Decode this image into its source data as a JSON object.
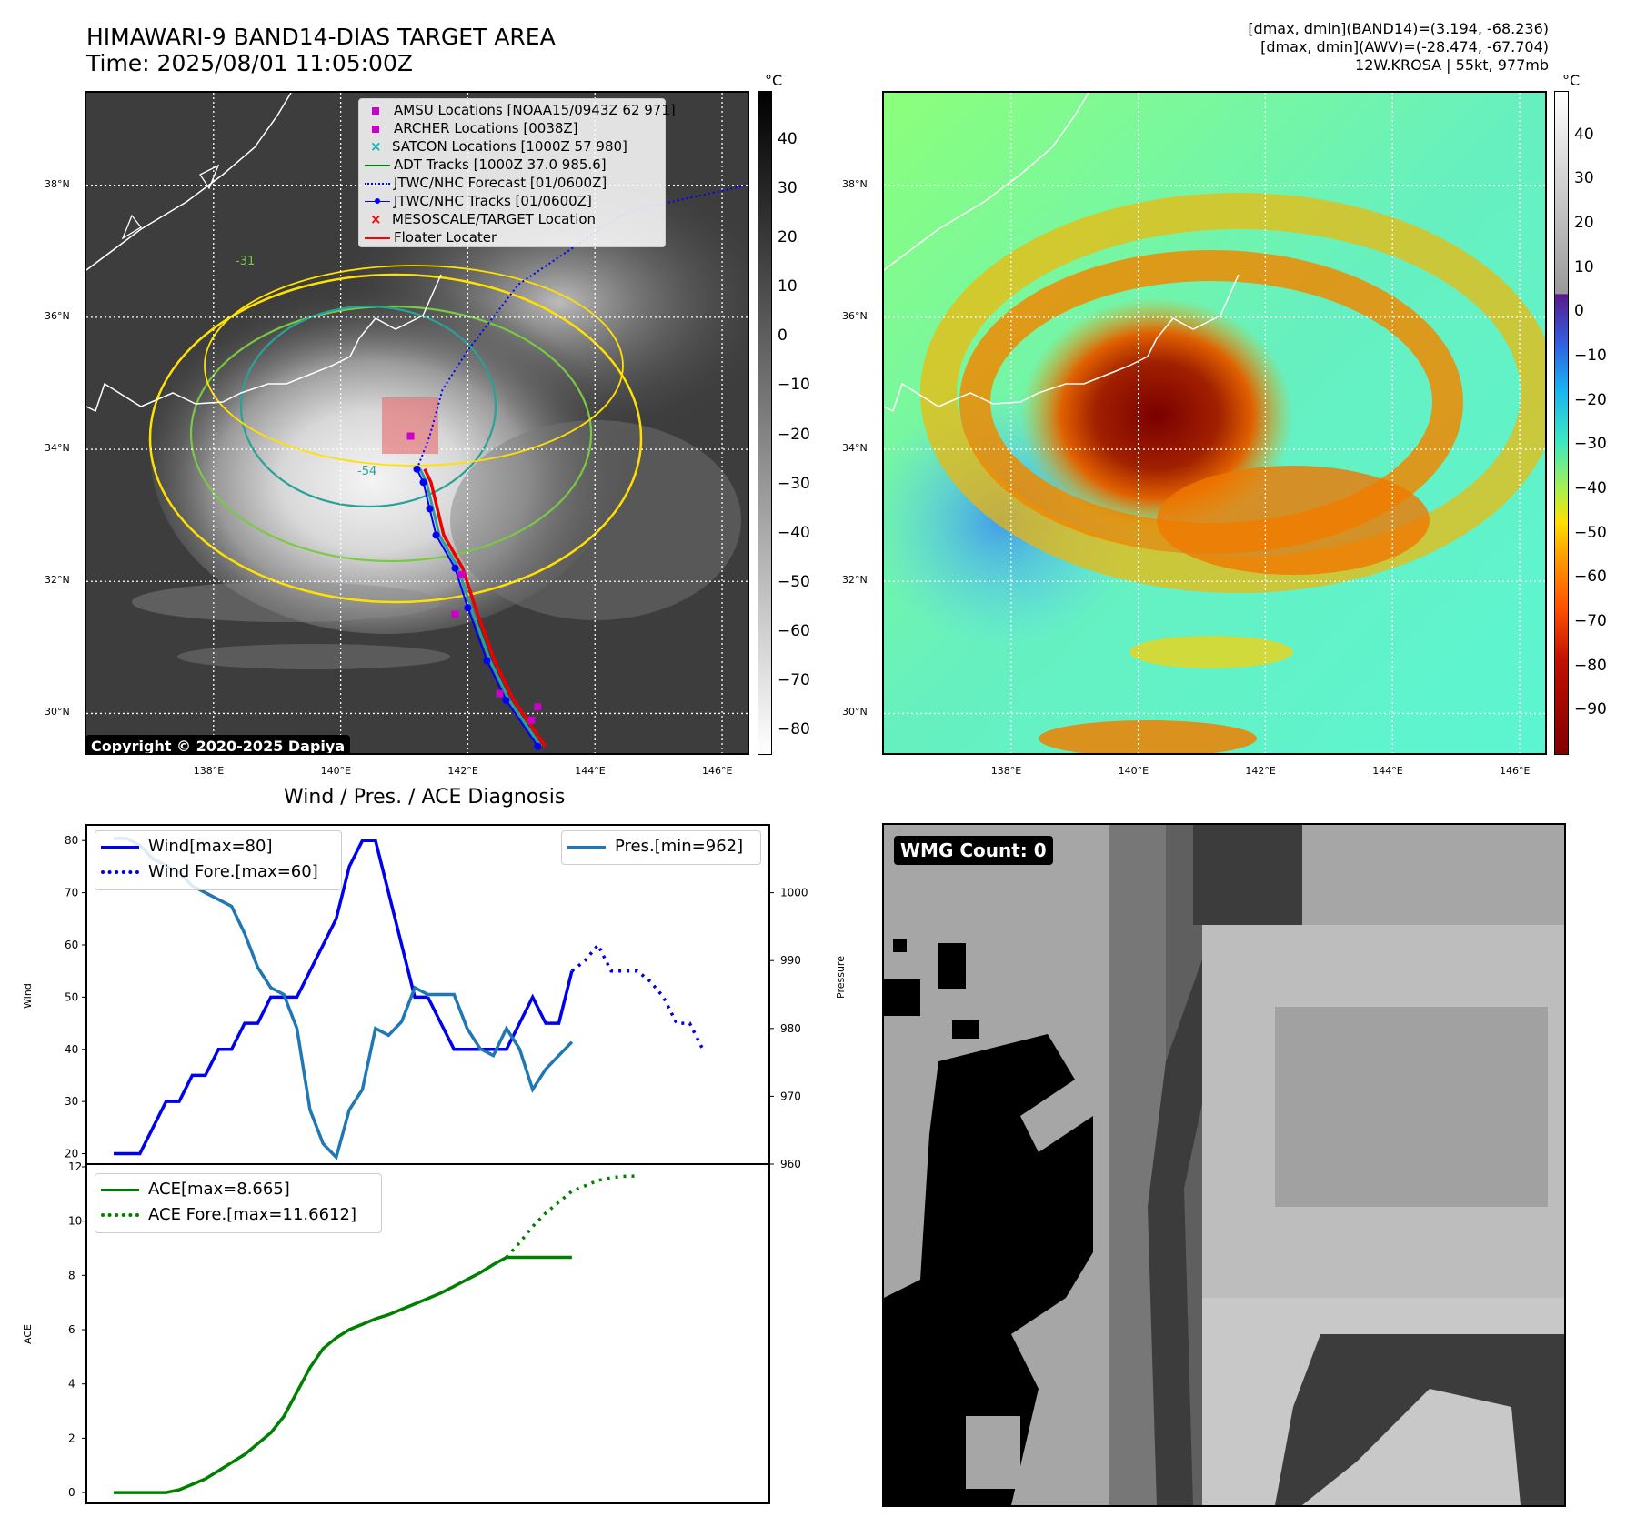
{
  "header": {
    "title_line1": "HIMAWARI-9 BAND14-DIAS TARGET AREA",
    "title_line2": "Time: 2025/08/01 11:05:00Z",
    "info_line1": "[dmax, dmin](BAND14)=(3.194, -68.236)",
    "info_line2": "[dmax, dmin](AWV)=(-28.474, -67.704)",
    "info_line3": "12W.KROSA | 55kt, 977mb"
  },
  "map": {
    "lat_labels": [
      "38°N",
      "36°N",
      "34°N",
      "32°N",
      "30°N"
    ],
    "lat_values": [
      38,
      36,
      34,
      32,
      30
    ],
    "lon_labels": [
      "138°E",
      "140°E",
      "142°E",
      "144°E",
      "146°E"
    ],
    "lon_values": [
      138,
      140,
      142,
      144,
      146
    ],
    "lon_range": [
      136.0,
      146.4
    ],
    "lat_range": [
      29.4,
      39.4
    ],
    "copyright": "Copyright © 2020-2025 Dapiya",
    "legend": [
      {
        "label": "AMSU Locations [NOAA15/0943Z 62 971]",
        "icon": "square",
        "color": "#cc00cc"
      },
      {
        "label": "ARCHER Locations [0038Z]",
        "icon": "square",
        "color": "#cc00cc"
      },
      {
        "label": "SATCON Locations [1000Z 57 980]",
        "icon": "x",
        "color": "#00bbbb"
      },
      {
        "label": "ADT Tracks [1000Z 37.0 985.6]",
        "icon": "line",
        "color": "#008000"
      },
      {
        "label": "JTWC/NHC Forecast [01/0600Z]",
        "icon": "dotted",
        "color": "#0000ff"
      },
      {
        "label": "JTWC/NHC Tracks [01/0600Z]",
        "icon": "line-dot",
        "color": "#0000ff"
      },
      {
        "label": "MESOSCALE/TARGET Location",
        "icon": "x",
        "color": "#ff0000"
      },
      {
        "label": "Floater Locater",
        "icon": "line",
        "color": "#ff0000"
      }
    ],
    "contour_labels": [
      "-31",
      "-54"
    ],
    "track_jtwc": [
      [
        143.1,
        29.5
      ],
      [
        142.6,
        30.2
      ],
      [
        142.3,
        30.8
      ],
      [
        142.0,
        31.6
      ],
      [
        141.8,
        32.2
      ],
      [
        141.5,
        32.7
      ],
      [
        141.4,
        33.1
      ],
      [
        141.3,
        33.5
      ],
      [
        141.2,
        33.7
      ]
    ],
    "track_forecast": [
      [
        141.2,
        33.7
      ],
      [
        141.4,
        34.2
      ],
      [
        141.6,
        34.9
      ],
      [
        142.0,
        35.5
      ],
      [
        142.8,
        36.5
      ],
      [
        144.5,
        37.6
      ],
      [
        146.4,
        38.0
      ]
    ]
  },
  "colorbar_left": {
    "unit": "°C",
    "ticks": [
      "40",
      "30",
      "20",
      "10",
      "0",
      "−10",
      "−20",
      "−30",
      "−40",
      "−50",
      "−60",
      "−70",
      "−80"
    ],
    "range": [
      -85,
      50
    ]
  },
  "colorbar_right": {
    "unit": "°C",
    "ticks": [
      "40",
      "30",
      "20",
      "10",
      "0",
      "−10",
      "−20",
      "−30",
      "−40",
      "−50",
      "−60",
      "−70",
      "−80",
      "−90"
    ],
    "range": [
      -100,
      50
    ]
  },
  "diagnosis_title": "Wind / Pres. / ACE Diagnosis",
  "wmg": {
    "badge": "WMG Count: 0"
  },
  "chart_data": [
    {
      "type": "line",
      "title": "Wind / Pres. / ACE Diagnosis",
      "ylabel": "Wind",
      "ylabel_right": "Pressure",
      "ylim": [
        18,
        83
      ],
      "ylim_right": [
        960,
        1010
      ],
      "yticks": [
        20,
        30,
        40,
        50,
        60,
        70,
        80
      ],
      "yticks_right": [
        960,
        970,
        980,
        990,
        1000
      ],
      "legend_left": [
        "Wind[max=80]",
        "Wind Fore.[max=60]"
      ],
      "legend_right": [
        "Pres.[min=962]"
      ],
      "series": [
        {
          "name": "Wind[max=80]",
          "color": "#0000ee",
          "style": "solid",
          "x": [
            0,
            1,
            2,
            3,
            4,
            5,
            6,
            7,
            8,
            9,
            10,
            11,
            12,
            13,
            14,
            15,
            16,
            17,
            18,
            19,
            20,
            21,
            22,
            23,
            24
          ],
          "values": [
            20,
            20,
            20,
            25,
            30,
            30,
            35,
            35,
            40,
            40,
            45,
            45,
            50,
            50,
            50,
            55,
            60,
            65,
            75,
            80,
            80,
            70,
            60,
            50,
            50
          ]
        },
        {
          "name": "Wind[max=80]",
          "color": "#0000ee",
          "style": "solid",
          "x": [
            24,
            25,
            26,
            27,
            28,
            29,
            30,
            31,
            32,
            33,
            34,
            35
          ],
          "values": [
            50,
            45,
            40,
            40,
            40,
            40,
            40,
            45,
            50,
            45,
            45,
            55
          ]
        },
        {
          "name": "Wind Fore.[max=60]",
          "color": "#0000ee",
          "style": "dotted",
          "x": [
            35,
            36,
            37,
            38,
            39,
            40,
            41,
            42,
            43,
            44,
            45
          ],
          "values": [
            55,
            57,
            60,
            55,
            55,
            55,
            53,
            50,
            45,
            45,
            40
          ]
        },
        {
          "name": "Pres.[min=962]",
          "color": "#1f77b4",
          "style": "solid",
          "axis": "right",
          "x": [
            0,
            1,
            2,
            3,
            4,
            5,
            6,
            7,
            8,
            9,
            10,
            11,
            12,
            13,
            14,
            15,
            16,
            17,
            18,
            19,
            20,
            21,
            22,
            23,
            24,
            25,
            26,
            27,
            28,
            29,
            30,
            31,
            32,
            33,
            34,
            35
          ],
          "values": [
            1008,
            1008,
            1007,
            1005,
            1004,
            1003,
            1001,
            1000,
            999,
            998,
            994,
            989,
            986,
            985,
            980,
            968,
            963,
            961,
            968,
            971,
            980,
            979,
            981,
            986,
            985,
            985,
            985,
            980,
            977,
            976,
            980,
            977,
            971,
            974,
            976,
            978
          ]
        }
      ]
    },
    {
      "type": "line",
      "ylabel": "ACE",
      "ylim": [
        -0.4,
        12.1
      ],
      "yticks": [
        0,
        2,
        4,
        6,
        8,
        10,
        12
      ],
      "series": [
        {
          "name": "ACE[max=8.665]",
          "color": "#008000",
          "style": "solid",
          "x": [
            0,
            1,
            2,
            3,
            4,
            5,
            6,
            7,
            8,
            9,
            10,
            11,
            12,
            13,
            14,
            15,
            16,
            17,
            18,
            19,
            20,
            21,
            22,
            23,
            24,
            25,
            26,
            27,
            28,
            29,
            30,
            31,
            32,
            33,
            34,
            35
          ],
          "values": [
            0,
            0,
            0,
            0,
            0,
            0.1,
            0.3,
            0.5,
            0.8,
            1.1,
            1.4,
            1.8,
            2.2,
            2.8,
            3.7,
            4.6,
            5.3,
            5.7,
            6.0,
            6.2,
            6.4,
            6.55,
            6.75,
            6.95,
            7.15,
            7.35,
            7.6,
            7.85,
            8.1,
            8.4,
            8.665,
            8.665,
            8.665,
            8.665,
            8.665,
            8.665
          ]
        },
        {
          "name": "ACE Fore.[max=11.6612]",
          "color": "#008000",
          "style": "dotted",
          "x": [
            30,
            31,
            32,
            33,
            34,
            35,
            36,
            37,
            38,
            39,
            40
          ],
          "values": [
            8.665,
            9.2,
            9.8,
            10.3,
            10.7,
            11.1,
            11.3,
            11.5,
            11.6,
            11.65,
            11.6612
          ]
        }
      ]
    }
  ]
}
